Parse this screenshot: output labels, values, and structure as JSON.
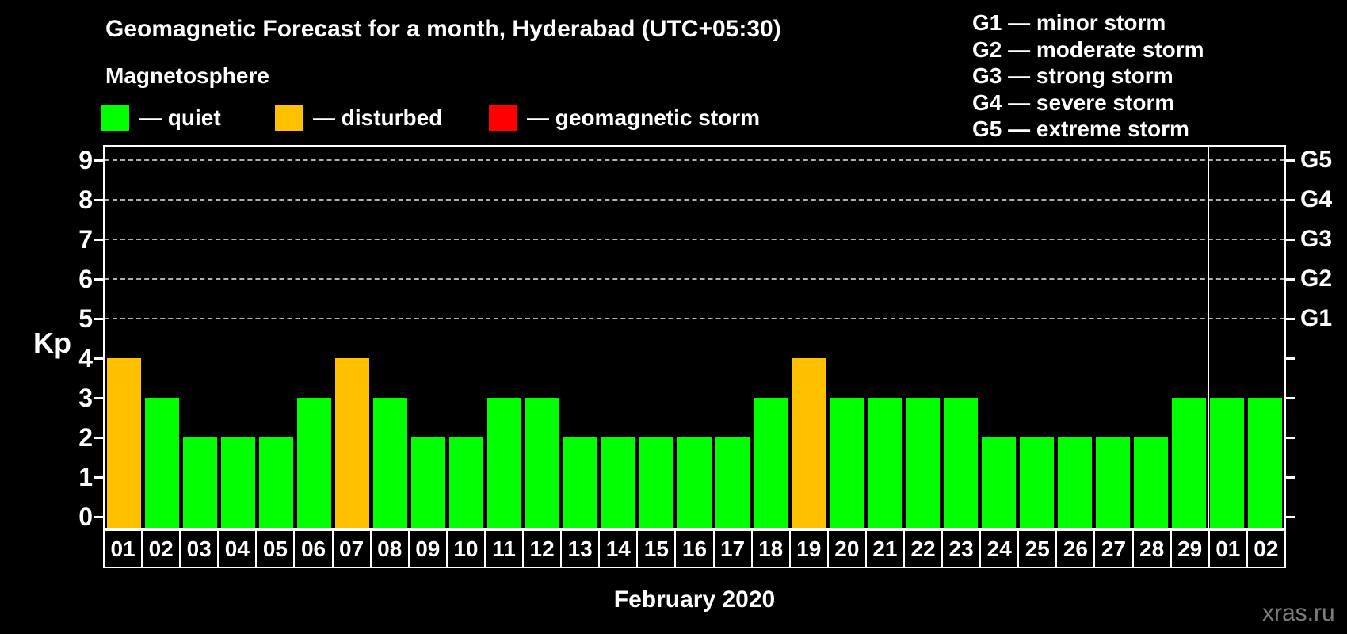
{
  "header": {
    "title": "Geomagnetic Forecast for a month, Hyderabad (UTC+05:30)",
    "subtitle": "Magnetosphere"
  },
  "legend": {
    "items": [
      {
        "key": "quiet",
        "label": "— quiet",
        "color": "#00ff00"
      },
      {
        "key": "disturbed",
        "label": "— disturbed",
        "color": "#ffc000"
      },
      {
        "key": "storm",
        "label": "— geomagnetic storm",
        "color": "#ff0000"
      }
    ],
    "item_offsets": [
      128,
      347,
      617
    ]
  },
  "g_legend": {
    "items": [
      "G1 — minor storm",
      "G2 — moderate storm",
      "G3 — strong storm",
      "G4 — severe storm",
      "G5 — extreme storm"
    ]
  },
  "watermark": "xras.ru",
  "chart_data": {
    "type": "bar",
    "title": "Geomagnetic Forecast for a month, Hyderabad (UTC+05:30)",
    "xlabel": "February 2020",
    "ylabel": "Kp",
    "ylim": [
      0,
      9
    ],
    "yticks": [
      0,
      1,
      2,
      3,
      4,
      5,
      6,
      7,
      8,
      9
    ],
    "gridlines_at": [
      5,
      6,
      7,
      8,
      9
    ],
    "grid_style": "dashed",
    "right_axis_labels": [
      {
        "kp": 5,
        "label": "G1"
      },
      {
        "kp": 6,
        "label": "G2"
      },
      {
        "kp": 7,
        "label": "G3"
      },
      {
        "kp": 8,
        "label": "G4"
      },
      {
        "kp": 9,
        "label": "G5"
      }
    ],
    "categories": [
      "01",
      "02",
      "03",
      "04",
      "05",
      "06",
      "07",
      "08",
      "09",
      "10",
      "11",
      "12",
      "13",
      "14",
      "15",
      "16",
      "17",
      "18",
      "19",
      "20",
      "21",
      "22",
      "23",
      "24",
      "25",
      "26",
      "27",
      "28",
      "29",
      "01",
      "02"
    ],
    "values": [
      4,
      3,
      2,
      2,
      2,
      3,
      4,
      3,
      2,
      2,
      3,
      3,
      2,
      2,
      2,
      2,
      2,
      3,
      4,
      3,
      3,
      3,
      3,
      2,
      2,
      2,
      2,
      2,
      3,
      3,
      3
    ],
    "statuses": [
      "disturbed",
      "quiet",
      "quiet",
      "quiet",
      "quiet",
      "quiet",
      "disturbed",
      "quiet",
      "quiet",
      "quiet",
      "quiet",
      "quiet",
      "quiet",
      "quiet",
      "quiet",
      "quiet",
      "quiet",
      "quiet",
      "disturbed",
      "quiet",
      "quiet",
      "quiet",
      "quiet",
      "quiet",
      "quiet",
      "quiet",
      "quiet",
      "quiet",
      "quiet",
      "quiet",
      "quiet"
    ],
    "month_separator_after_index": 28,
    "colors": {
      "quiet": "#00ff00",
      "disturbed": "#ffc000",
      "storm": "#ff0000",
      "axis": "#ffffff",
      "grid": "#b0b0b0",
      "watermark": "#7d7d7d",
      "background": "#000000"
    },
    "legend_position": "top-left"
  }
}
